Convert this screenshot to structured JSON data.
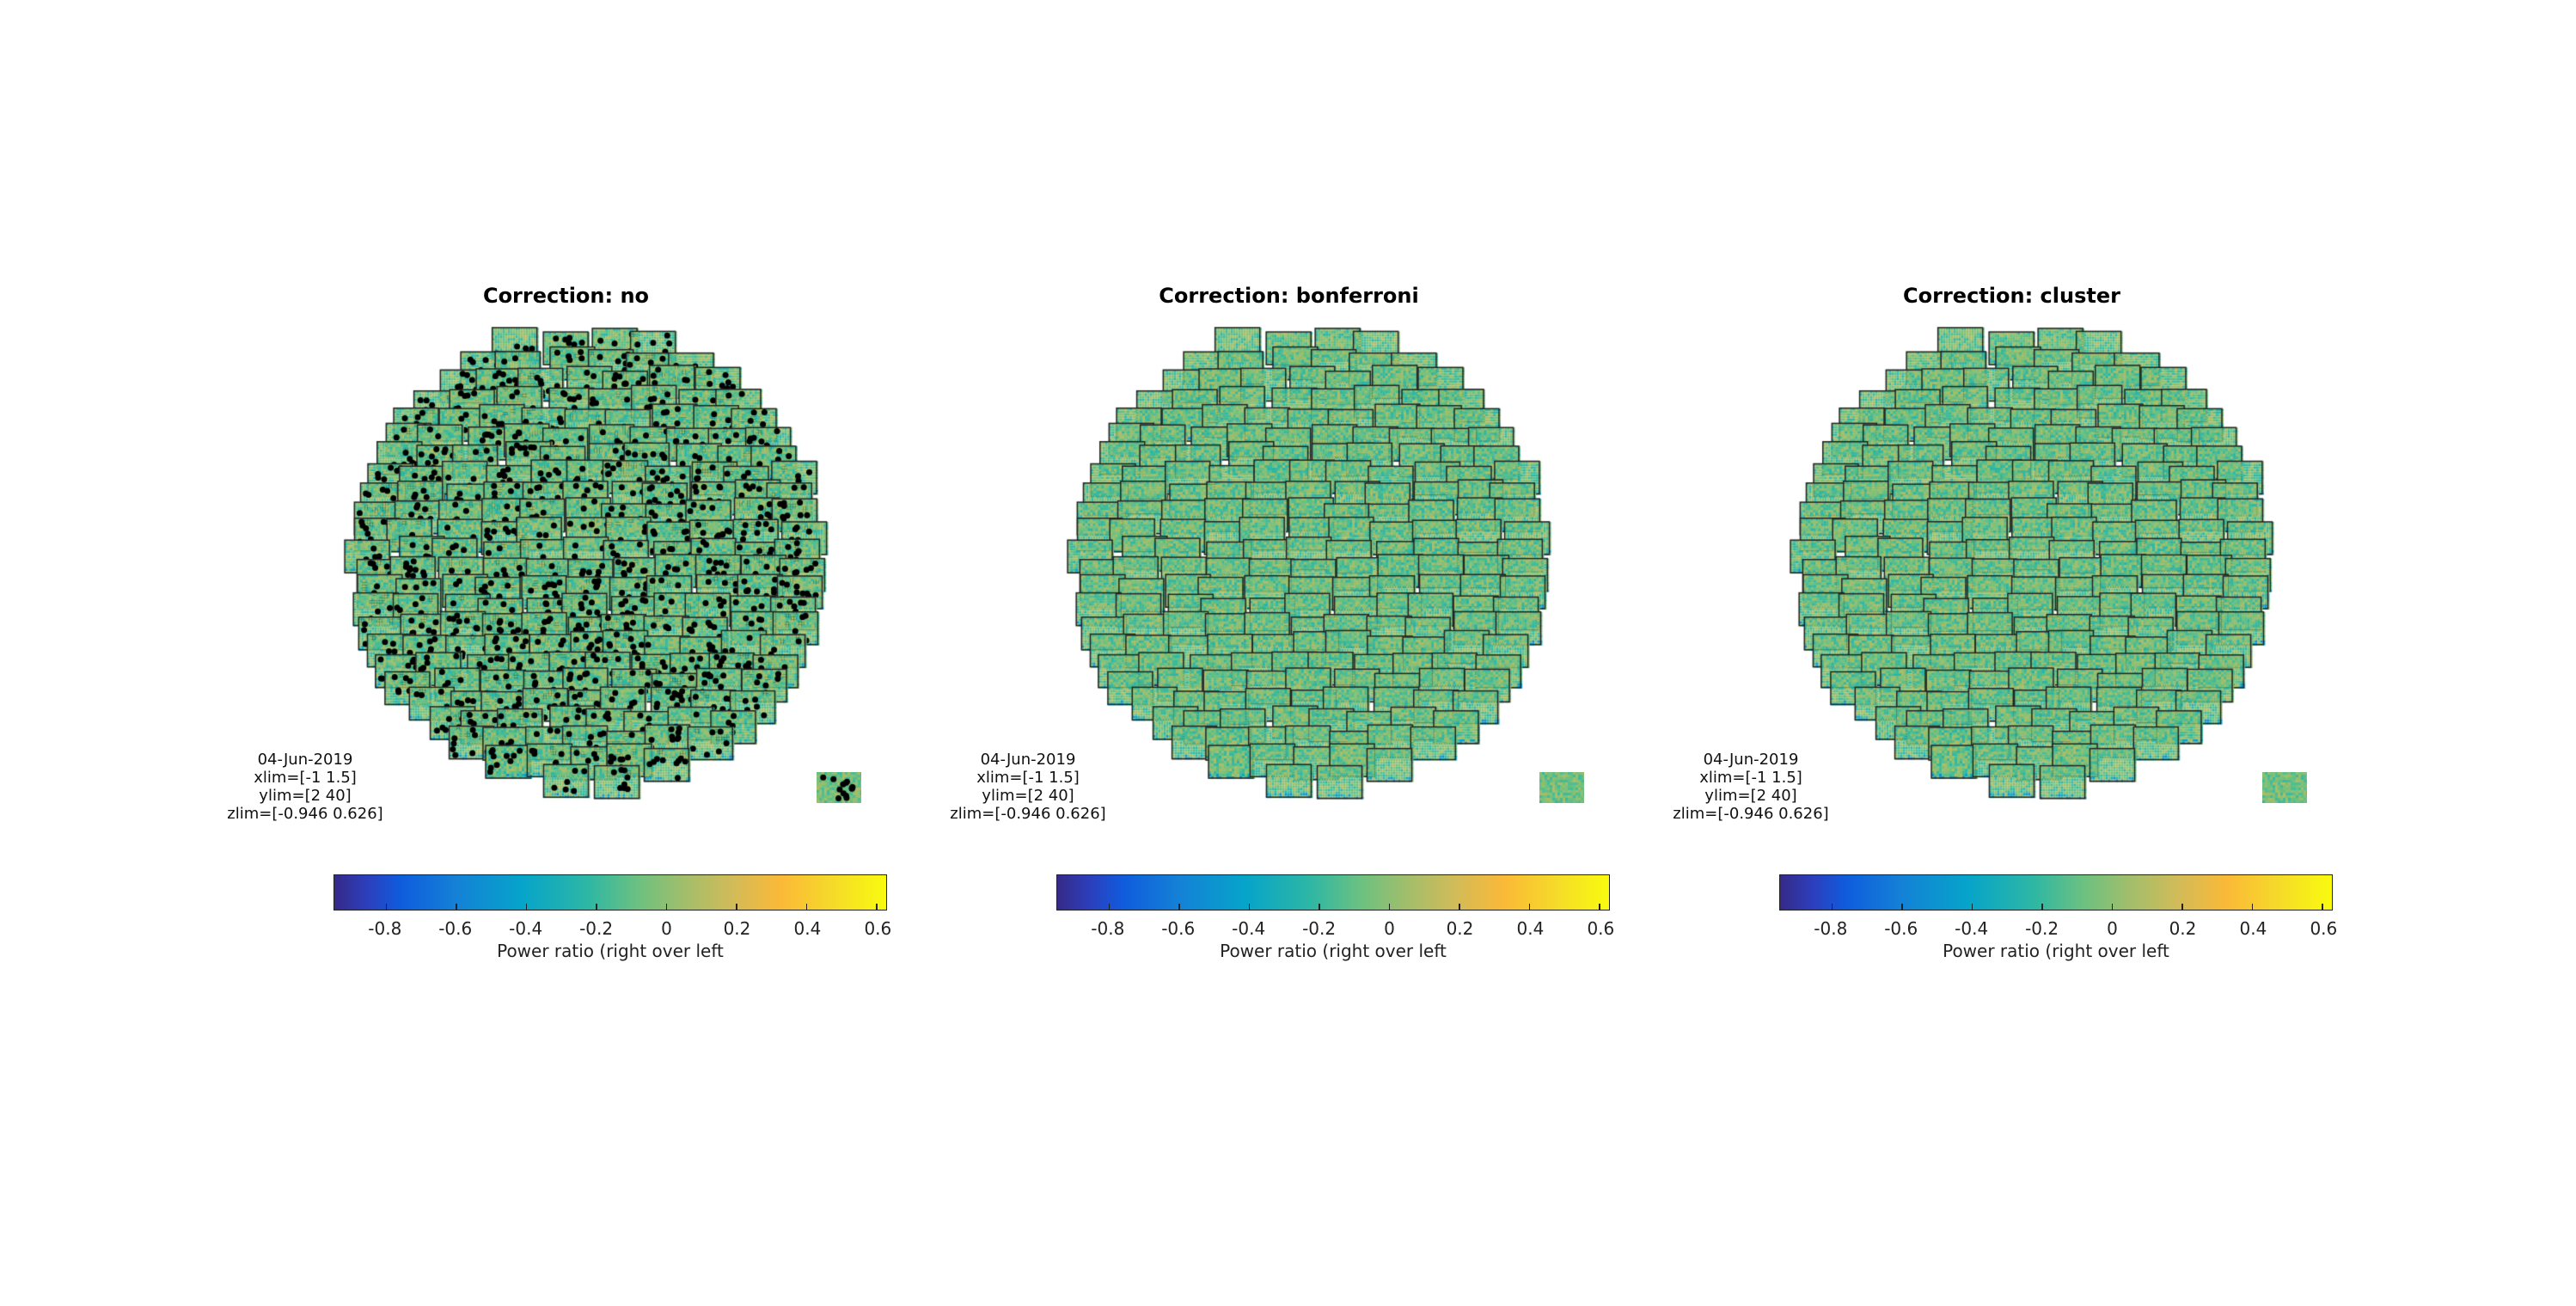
{
  "chart_data": {
    "type": "heatmap",
    "panels": [
      {
        "title": "Correction: no",
        "significance_markers": "dense"
      },
      {
        "title": "Correction: bonferroni",
        "significance_markers": "none"
      },
      {
        "title": "Correction: cluster",
        "significance_markers": "none"
      }
    ],
    "info": {
      "date": "04-Jun-2019",
      "xlim": "xlim=[-1 1.5]",
      "ylim": "ylim=[2 40]",
      "zlim": "zlim=[-0.946 0.626]"
    },
    "colorbar": {
      "colormap": "parula",
      "range": [
        -0.946,
        0.626
      ],
      "ticks": [
        -0.8,
        -0.6,
        -0.4,
        -0.2,
        0,
        0.2,
        0.4,
        0.6
      ],
      "tick_labels": [
        "-0.8",
        "-0.6",
        "-0.4",
        "-0.2",
        "0",
        "0.2",
        "0.4",
        "0.6"
      ],
      "label": "Power ratio (right over left",
      "orientation": "horizontal",
      "placement": "bottom"
    }
  }
}
